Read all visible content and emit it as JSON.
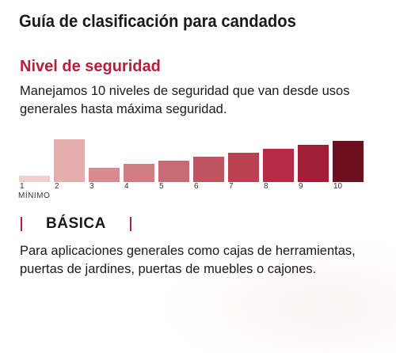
{
  "header": {
    "title": "Guía de clasificación para candados"
  },
  "security": {
    "heading": "Nivel de seguridad",
    "description": "Manejamos 10 niveles de seguridad que van desde usos generales hasta máxima seguridad."
  },
  "scale": {
    "levels": [
      {
        "label": "1",
        "color": "#f0d0cc"
      },
      {
        "label": "2",
        "color": "#e3aeac"
      },
      {
        "label": "3",
        "color": "#d98c90"
      },
      {
        "label": "4",
        "color": "#d07d83"
      },
      {
        "label": "5",
        "color": "#c86a74"
      },
      {
        "label": "6",
        "color": "#c05562"
      },
      {
        "label": "7",
        "color": "#b94251"
      },
      {
        "label": "8",
        "color": "#b52a45"
      },
      {
        "label": "9",
        "color": "#a11d38"
      },
      {
        "label": "10",
        "color": "#6e0f1f"
      }
    ],
    "min_label": "MÍNIMO",
    "selected_level": 2
  },
  "level": {
    "name": "BÁSICA",
    "description": "Para aplicaciones generales como cajas de herramientas, puertas de jardines, puertas de muebles o cajones."
  }
}
